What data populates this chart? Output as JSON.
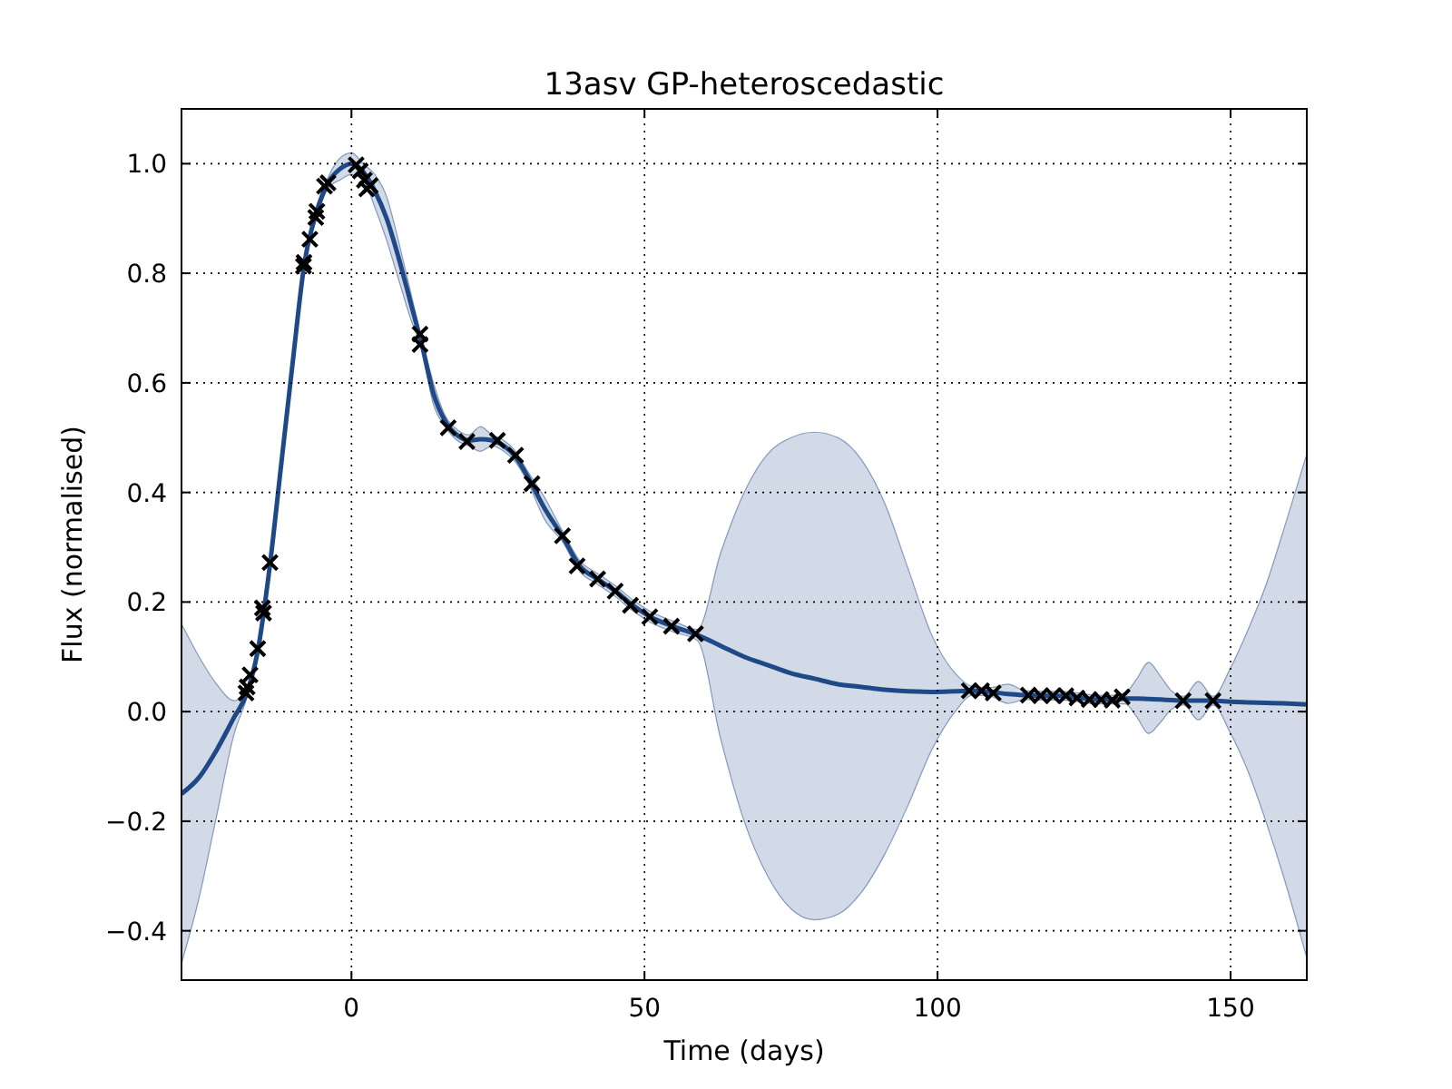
{
  "chart_data": {
    "type": "line",
    "title": "13asv GP-heteroscedastic",
    "xlabel": "Time (days)",
    "ylabel": "Flux (normalised)",
    "xlim": [
      -29,
      163
    ],
    "ylim": [
      -0.49,
      1.1
    ],
    "xticks": [
      0,
      50,
      100,
      150
    ],
    "yticks": [
      {
        "value": -0.4,
        "label": "−0.4"
      },
      {
        "value": -0.2,
        "label": "−0.2"
      },
      {
        "value": 0,
        "label": "0.0"
      },
      {
        "value": 0.2,
        "label": "0.2"
      },
      {
        "value": 0.4,
        "label": "0.4"
      },
      {
        "value": 0.6,
        "label": "0.6"
      },
      {
        "value": 0.8,
        "label": "0.8"
      },
      {
        "value": 1,
        "label": "1.0"
      }
    ],
    "grid": true,
    "series": [
      {
        "color": "#1f4887",
        "line_style": "solid",
        "x": [
          -29,
          -26,
          -23,
          -20,
          -18,
          -16,
          -14,
          -12,
          -10,
          -8,
          -6,
          -4,
          -2,
          0,
          2,
          4,
          6,
          8,
          10,
          12,
          14,
          16,
          18,
          20,
          22,
          24,
          26,
          28,
          30,
          33,
          36,
          39,
          42,
          45,
          48,
          51,
          55,
          59,
          63,
          67,
          71,
          75,
          79,
          83,
          87,
          91,
          95,
          99,
          103,
          106,
          109,
          112,
          115,
          118,
          121,
          124,
          127,
          130,
          132,
          134,
          136,
          138,
          140,
          142,
          144.5,
          147,
          150,
          153,
          156,
          159,
          163
        ],
        "values": [
          -0.15,
          -0.12,
          -0.07,
          -0.01,
          0.03,
          0.11,
          0.26,
          0.45,
          0.64,
          0.82,
          0.91,
          0.965,
          0.99,
          1.0,
          0.985,
          0.95,
          0.9,
          0.83,
          0.75,
          0.67,
          0.58,
          0.53,
          0.505,
          0.495,
          0.497,
          0.495,
          0.485,
          0.465,
          0.43,
          0.37,
          0.32,
          0.265,
          0.242,
          0.22,
          0.194,
          0.173,
          0.155,
          0.14,
          0.12,
          0.1,
          0.085,
          0.07,
          0.06,
          0.05,
          0.045,
          0.04,
          0.037,
          0.036,
          0.037,
          0.038,
          0.036,
          0.032,
          0.03,
          0.029,
          0.029,
          0.026,
          0.022,
          0.022,
          0.024,
          0.024,
          0.023,
          0.022,
          0.021,
          0.02,
          0.02,
          0.02,
          0.018,
          0.017,
          0.016,
          0.015,
          0.013
        ],
        "lower": [
          -0.46,
          -0.34,
          -0.19,
          -0.04,
          0.02,
          0.1,
          0.25,
          0.44,
          0.63,
          0.81,
          0.9,
          0.955,
          0.97,
          0.98,
          0.97,
          0.92,
          0.86,
          0.79,
          0.72,
          0.66,
          0.56,
          0.52,
          0.495,
          0.485,
          0.475,
          0.485,
          0.475,
          0.455,
          0.42,
          0.35,
          0.31,
          0.255,
          0.232,
          0.21,
          0.184,
          0.163,
          0.145,
          0.13,
          -0.05,
          -0.2,
          -0.3,
          -0.36,
          -0.38,
          -0.37,
          -0.33,
          -0.26,
          -0.17,
          -0.07,
          0.0,
          0.03,
          0.028,
          0.015,
          0.022,
          0.021,
          0.021,
          0.018,
          0.014,
          0.014,
          0.014,
          -0.01,
          -0.04,
          -0.02,
          0.005,
          0.012,
          -0.015,
          0.012,
          -0.04,
          -0.11,
          -0.2,
          -0.3,
          -0.45
        ],
        "upper": [
          0.16,
          0.1,
          0.05,
          0.02,
          0.04,
          0.12,
          0.27,
          0.46,
          0.65,
          0.83,
          0.92,
          0.975,
          1.01,
          1.02,
          1.0,
          0.98,
          0.94,
          0.86,
          0.77,
          0.68,
          0.6,
          0.54,
          0.515,
          0.505,
          0.52,
          0.505,
          0.495,
          0.475,
          0.44,
          0.39,
          0.33,
          0.275,
          0.252,
          0.23,
          0.204,
          0.183,
          0.165,
          0.15,
          0.29,
          0.4,
          0.47,
          0.5,
          0.51,
          0.5,
          0.46,
          0.38,
          0.26,
          0.14,
          0.07,
          0.046,
          0.044,
          0.05,
          0.038,
          0.037,
          0.037,
          0.034,
          0.03,
          0.03,
          0.034,
          0.06,
          0.09,
          0.065,
          0.037,
          0.028,
          0.055,
          0.028,
          0.08,
          0.15,
          0.23,
          0.33,
          0.47
        ]
      },
      {
        "type": "scatter",
        "color": "#000000",
        "marker": "cross",
        "x": [
          -18,
          -17.8,
          -17.3,
          -16,
          -15.2,
          -15,
          -13.9,
          -8.2,
          -8.1,
          -7.1,
          -6.1,
          -5.9,
          -4.6,
          -4,
          0.8,
          1.5,
          2.2,
          2.6,
          3.2,
          11.7,
          11.7,
          16.5,
          19.7,
          24.9,
          28,
          30.8,
          36,
          38.5,
          42,
          45,
          47.6,
          50.9,
          54.6,
          58.7,
          105.4,
          107.5,
          109.5,
          115.5,
          117.6,
          119.7,
          121.9,
          123.8,
          125.9,
          127.9,
          129.8,
          131.5,
          141.9,
          147
        ],
        "values": [
          0.034,
          0.045,
          0.067,
          0.115,
          0.189,
          0.18,
          0.272,
          0.813,
          0.82,
          0.862,
          0.902,
          0.913,
          0.959,
          0.965,
          0.998,
          0.987,
          0.97,
          0.954,
          0.96,
          0.689,
          0.67,
          0.518,
          0.493,
          0.495,
          0.468,
          0.416,
          0.321,
          0.266,
          0.242,
          0.22,
          0.194,
          0.173,
          0.156,
          0.142,
          0.038,
          0.038,
          0.034,
          0.03,
          0.029,
          0.029,
          0.029,
          0.025,
          0.022,
          0.022,
          0.021,
          0.027,
          0.02,
          0.02
        ]
      }
    ]
  }
}
